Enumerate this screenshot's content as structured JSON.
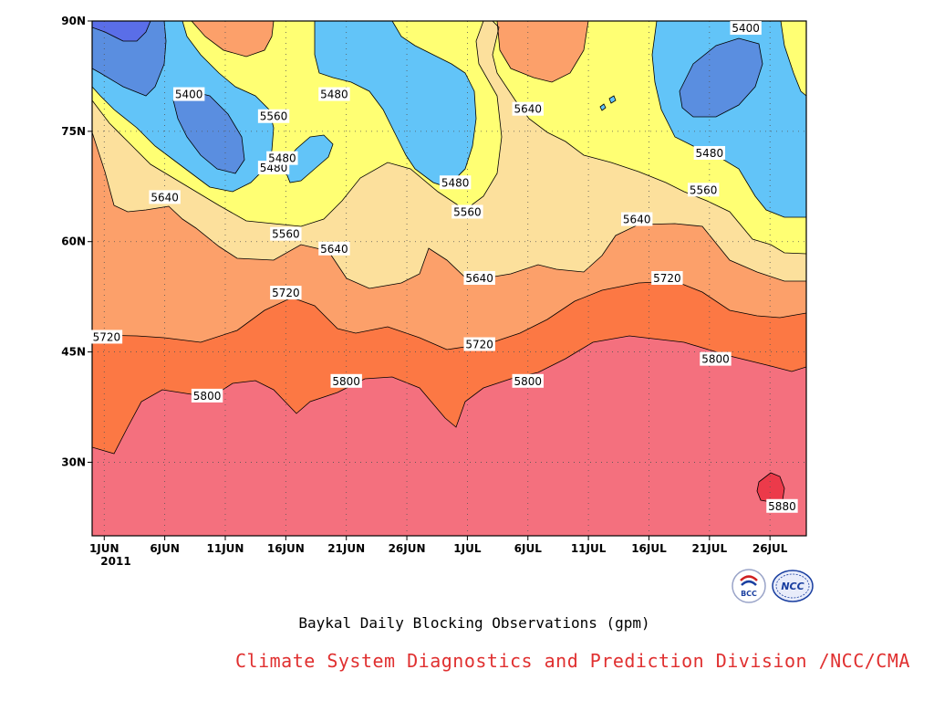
{
  "chart_data": {
    "type": "contour",
    "title": "Baykal Daily Blocking Observations (gpm)",
    "y_ticks": [
      "30N",
      "45N",
      "60N",
      "75N",
      "90N"
    ],
    "y_tick_values": [
      30,
      45,
      60,
      75,
      90
    ],
    "ylim": [
      20,
      90
    ],
    "x_ticks": [
      "1JUN",
      "6JUN",
      "11JUN",
      "16JUN",
      "21JUN",
      "26JUN",
      "1JUL",
      "6JUL",
      "11JUL",
      "16JUL",
      "21JUL",
      "26JUL"
    ],
    "x_tick_values": [
      1,
      6,
      11,
      16,
      21,
      26,
      31,
      36,
      41,
      46,
      51,
      56
    ],
    "xlim": [
      0,
      59
    ],
    "x_start_year": "2011",
    "contour_levels": [
      5400,
      5480,
      5560,
      5640,
      5720,
      5800,
      5880
    ],
    "level_colors": {
      "5320": "#5a6ee8",
      "5400": "#5a8ee0",
      "5480": "#62c4f8",
      "5560": "#ffff73",
      "5640": "#fce09c",
      "5720": "#fca06a",
      "5800": "#fc7844",
      "5880": "#f4707e",
      "max": "#ec3a4a"
    },
    "contour_labels": [
      {
        "x": 1.2,
        "y": 47,
        "text": "5720"
      },
      {
        "x": 9.5,
        "y": 39,
        "text": "5800"
      },
      {
        "x": 21,
        "y": 41,
        "text": "5800"
      },
      {
        "x": 36,
        "y": 41,
        "text": "5800"
      },
      {
        "x": 51.5,
        "y": 44,
        "text": "5800"
      },
      {
        "x": 57,
        "y": 24,
        "text": "5880"
      },
      {
        "x": 16,
        "y": 53,
        "text": "5720"
      },
      {
        "x": 32,
        "y": 46,
        "text": "5720"
      },
      {
        "x": 47.5,
        "y": 55,
        "text": "5720"
      },
      {
        "x": 6,
        "y": 66,
        "text": "5640"
      },
      {
        "x": 20,
        "y": 59,
        "text": "5640"
      },
      {
        "x": 32,
        "y": 55,
        "text": "5640"
      },
      {
        "x": 45,
        "y": 63,
        "text": "5640"
      },
      {
        "x": 36,
        "y": 78,
        "text": "5640"
      },
      {
        "x": 16,
        "y": 61,
        "text": "5560"
      },
      {
        "x": 31,
        "y": 64,
        "text": "5560"
      },
      {
        "x": 50.5,
        "y": 67,
        "text": "5560"
      },
      {
        "x": 15,
        "y": 77,
        "text": "5560"
      },
      {
        "x": 15,
        "y": 70,
        "text": "5480"
      },
      {
        "x": 15.7,
        "y": 71.3,
        "text": "5480"
      },
      {
        "x": 20,
        "y": 80,
        "text": "5480"
      },
      {
        "x": 30,
        "y": 68,
        "text": "5480"
      },
      {
        "x": 51,
        "y": 72,
        "text": "5480"
      },
      {
        "x": 8,
        "y": 80,
        "text": "5400"
      },
      {
        "x": 54,
        "y": 89,
        "text": "5400"
      }
    ]
  },
  "caption": "Baykal Daily Blocking Observations (gpm)",
  "credit": "Climate System Diagnostics and Prediction Division /NCC/CMA",
  "logos": [
    {
      "name": "BCC",
      "text": "BCC",
      "color": "#1a3fa0"
    },
    {
      "name": "NCC",
      "text": "NCC",
      "color": "#1a3fa0"
    }
  ]
}
